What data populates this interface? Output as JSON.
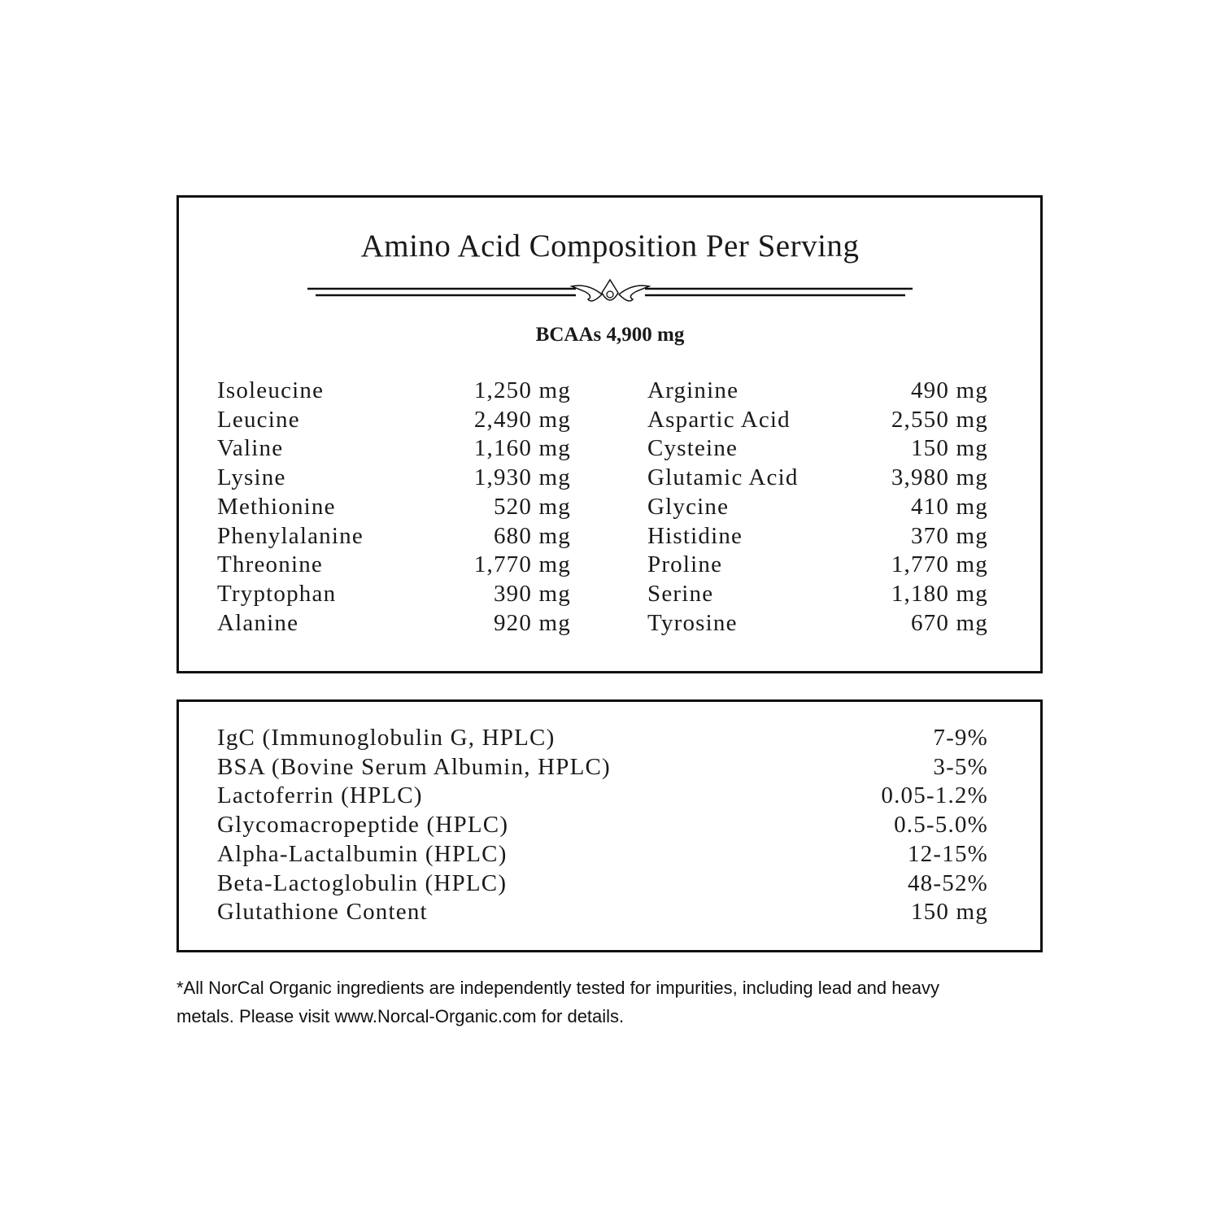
{
  "title": "Amino Acid Composition Per Serving",
  "ornament_icon": "flourish-divider-icon",
  "bcaas": "BCAAs  4,900 mg",
  "amino_left": [
    {
      "name": "Isoleucine",
      "value": "1,250 mg"
    },
    {
      "name": "Leucine",
      "value": "2,490 mg"
    },
    {
      "name": "Valine",
      "value": "1,160 mg"
    },
    {
      "name": "Lysine",
      "value": "1,930 mg"
    },
    {
      "name": "Methionine",
      "value": "520 mg"
    },
    {
      "name": "Phenylalanine",
      "value": "680 mg"
    },
    {
      "name": "Threonine",
      "value": "1,770 mg"
    },
    {
      "name": "Tryptophan",
      "value": "390 mg"
    },
    {
      "name": "Alanine",
      "value": "920 mg"
    }
  ],
  "amino_right": [
    {
      "name": "Arginine",
      "value": "490 mg"
    },
    {
      "name": "Aspartic Acid",
      "value": "2,550 mg"
    },
    {
      "name": "Cysteine",
      "value": "150 mg"
    },
    {
      "name": "Glutamic Acid",
      "value": "3,980 mg"
    },
    {
      "name": "Glycine",
      "value": "410 mg"
    },
    {
      "name": "Histidine",
      "value": "370 mg"
    },
    {
      "name": "Proline",
      "value": "1,770 mg"
    },
    {
      "name": "Serine",
      "value": "1,180 mg"
    },
    {
      "name": "Tyrosine",
      "value": "670 mg"
    }
  ],
  "fractions": [
    {
      "name": "IgC (Immunoglobulin G, HPLC)",
      "value": "7-9%"
    },
    {
      "name": "BSA (Bovine Serum Albumin, HPLC)",
      "value": "3-5%"
    },
    {
      "name": "Lactoferrin (HPLC)",
      "value": "0.05-1.2%"
    },
    {
      "name": "Glycomacropeptide (HPLC)",
      "value": "0.5-5.0%"
    },
    {
      "name": "Alpha-Lactalbumin (HPLC)",
      "value": "12-15%"
    },
    {
      "name": "Beta-Lactoglobulin (HPLC)",
      "value": "48-52%"
    },
    {
      "name": "Glutathione Content",
      "value": "150 mg"
    }
  ],
  "footnote_line1": "*All NorCal Organic ingredients are independently tested for impurities, including lead and heavy",
  "footnote_line2": "metals. Please visit www.Norcal-Organic.com for details."
}
